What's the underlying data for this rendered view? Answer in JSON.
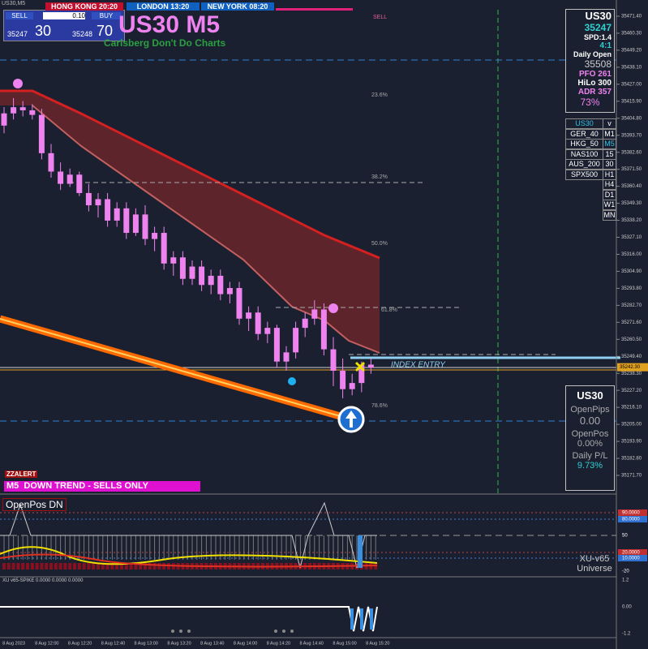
{
  "window_title": "US30,M5",
  "trade_panel": {
    "sell": "SELL",
    "lot": "0.10",
    "buy": "BUY",
    "bid_main": "35247",
    "bid_big": "30",
    "ask_main": "35248",
    "ask_big": "70"
  },
  "sessions": [
    "HONG KONG 20:20",
    "LONDON 13:20",
    "NEW YORK 08:20"
  ],
  "header": {
    "title": "US30 M5",
    "subtitle": "Carlsberg Don't Do Charts",
    "signal": "SELL"
  },
  "info_box": {
    "symbol": "US30",
    "price": "35247",
    "spread": "SPD:1.4",
    "ratio": "4:1",
    "daily_open_label": "Daily Open",
    "daily_open": "35508",
    "pfo": "PFO 261",
    "hilo": "HiLo 300",
    "adr": "ADR 357",
    "adr_pct": "73%"
  },
  "symbols": [
    "US30",
    "GER_40",
    "HKG_50",
    "NAS100",
    "AUS_200",
    "SPX500"
  ],
  "timeframes": [
    "v",
    "M1",
    "M5",
    "15",
    "30",
    "H1",
    "H4",
    "D1",
    "W1",
    "MN"
  ],
  "fib_levels": [
    "23.6%",
    "38.2%",
    "50.0%",
    "61.8%",
    "78.6%"
  ],
  "entry_label": "INDEX ENTRY",
  "position_box": {
    "symbol": "US30",
    "pips_label": "OpenPips",
    "pips": "0.00",
    "pos_label": "OpenPos",
    "pos": "0.00%",
    "pl_label": "Daily P/L",
    "pl": "9.73%"
  },
  "alert": "ZZALERT",
  "trend_banner": "M5  DOWN TREND - SELLS ONLY",
  "price_axis": {
    "ticks": [
      {
        "value": 35471.4,
        "label": "35471.40"
      },
      {
        "value": 35460.3,
        "label": "35460.30"
      },
      {
        "value": 35449.2,
        "label": "35449.20"
      },
      {
        "value": 35438.1,
        "label": "35438.10"
      },
      {
        "value": 35427,
        "label": "35427.00"
      },
      {
        "value": 35415.9,
        "label": "35415.90"
      },
      {
        "value": 35404.8,
        "label": "35404.80"
      },
      {
        "value": 35393.7,
        "label": "35393.70"
      },
      {
        "value": 35382.6,
        "label": "35382.60"
      },
      {
        "value": 35371.5,
        "label": "35371.50"
      },
      {
        "value": 35360.4,
        "label": "35360.40"
      },
      {
        "value": 35349.3,
        "label": "35349.30"
      },
      {
        "value": 35338.2,
        "label": "35338.20"
      },
      {
        "value": 35327.1,
        "label": "35327.10"
      },
      {
        "value": 35316,
        "label": "35316.00"
      },
      {
        "value": 35304.9,
        "label": "35304.90"
      },
      {
        "value": 35293.8,
        "label": "35293.80"
      },
      {
        "value": 35282.7,
        "label": "35282.70"
      },
      {
        "value": 35271.6,
        "label": "35271.60"
      },
      {
        "value": 35260.5,
        "label": "35260.50"
      },
      {
        "value": 35249.4,
        "label": "35249.40"
      },
      {
        "value": 35238.3,
        "label": "35238.30"
      },
      {
        "value": 35227.2,
        "label": "35227.20"
      },
      {
        "value": 35216.1,
        "label": "35216.10"
      },
      {
        "value": 35205,
        "label": "35205.00"
      },
      {
        "value": 35193.9,
        "label": "35193.90"
      },
      {
        "value": 35182.8,
        "label": "35182.80"
      },
      {
        "value": 35171.7,
        "label": "35171.70"
      }
    ],
    "current": {
      "value": 35242.3,
      "label": "35242.30"
    }
  },
  "candles": [
    [
      35400,
      35412,
      35395,
      35408
    ],
    [
      35408,
      35418,
      35404,
      35412
    ],
    [
      35412,
      35416,
      35406,
      35410
    ],
    [
      35410,
      35414,
      35404,
      35407
    ],
    [
      35407,
      35411,
      35378,
      35382
    ],
    [
      35382,
      35388,
      35366,
      35370
    ],
    [
      35370,
      35376,
      35358,
      35362
    ],
    [
      35362,
      35372,
      35360,
      35368
    ],
    [
      35368,
      35370,
      35354,
      35356
    ],
    [
      35356,
      35362,
      35344,
      35348
    ],
    [
      35348,
      35356,
      35340,
      35352
    ],
    [
      35352,
      35356,
      35334,
      35338
    ],
    [
      35338,
      35350,
      35334,
      35346
    ],
    [
      35346,
      35350,
      35326,
      35330
    ],
    [
      35330,
      35346,
      35328,
      35342
    ],
    [
      35342,
      35348,
      35322,
      35326
    ],
    [
      35326,
      35334,
      35318,
      35330
    ],
    [
      35330,
      35334,
      35306,
      35310
    ],
    [
      35310,
      35318,
      35302,
      35314
    ],
    [
      35314,
      35318,
      35296,
      35300
    ],
    [
      35300,
      35312,
      35296,
      35308
    ],
    [
      35308,
      35312,
      35292,
      35296
    ],
    [
      35296,
      35306,
      35290,
      35302
    ],
    [
      35302,
      35306,
      35286,
      35290
    ],
    [
      35290,
      35298,
      35284,
      35294
    ],
    [
      35294,
      35298,
      35270,
      35274
    ],
    [
      35274,
      35282,
      35266,
      35278
    ],
    [
      35278,
      35282,
      35260,
      35264
    ],
    [
      35264,
      35272,
      35258,
      35268
    ],
    [
      35268,
      35270,
      35242,
      35246
    ],
    [
      35246,
      35256,
      35240,
      35252
    ],
    [
      35252,
      35272,
      35248,
      35268
    ],
    [
      35268,
      35278,
      35262,
      35274
    ],
    [
      35274,
      35286,
      35270,
      35280
    ],
    [
      35280,
      35284,
      35250,
      35254
    ],
    [
      35254,
      35262,
      35230,
      35240
    ],
    [
      35240,
      35248,
      35222,
      35228
    ],
    [
      35228,
      35238,
      35224,
      35232
    ],
    [
      35232,
      35246,
      35226,
      35244
    ],
    [
      35244,
      35248,
      35238,
      35242
    ]
  ],
  "oscillator": {
    "title": "OpenPos DN",
    "levels": [
      "90.0000",
      "80.0000",
      "50",
      "20.0000",
      "10.0000",
      "-20"
    ],
    "name": "XU-v65",
    "sub": "Universe"
  },
  "spike": {
    "title": "XU v65-SPIKE 0.0000 0.0000 0.0000",
    "levels": [
      "1.2",
      "0.00",
      "-1.2"
    ]
  },
  "time_axis": [
    "8 Aug 2023",
    "8 Aug 12:00",
    "8 Aug 12:20",
    "8 Aug 12:40",
    "8 Aug 13:00",
    "8 Aug 13:20",
    "8 Aug 13:40",
    "8 Aug 14:00",
    "8 Aug 14:20",
    "8 Aug 14:40",
    "8 Aug 15:00",
    "8 Aug 15:20"
  ]
}
